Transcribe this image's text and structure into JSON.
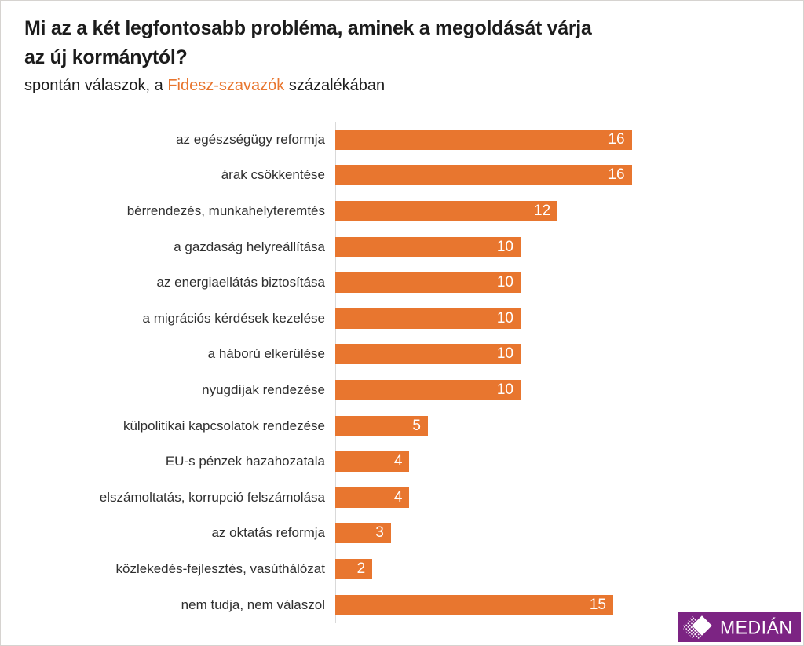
{
  "header": {
    "title_line1": "Mi az a két legfontosabb probléma, aminek a megoldását várja",
    "title_line2": "az új kormánytól?",
    "subtitle_prefix": "spontán válaszok, a ",
    "subtitle_highlight": "Fidesz-szavazók",
    "subtitle_suffix": " százalékában"
  },
  "chart_data": {
    "type": "bar",
    "orientation": "horizontal",
    "title": "Mi az a két legfontosabb probléma, aminek a megoldását várja az új kormánytól?",
    "subtitle": "spontán válaszok, a Fidesz-szavazók százalékában",
    "categories": [
      "az egészségügy reformja",
      "árak csökkentése",
      "bérrendezés, munkahelyteremtés",
      "a gazdaság helyreállítása",
      "az energiaellátás biztosítása",
      "a migrációs kérdések kezelése",
      "a háború elkerülése",
      "nyugdíjak rendezése",
      "külpolitikai kapcsolatok rendezése",
      "EU-s pénzek hazahozatala",
      "elszámoltatás, korrupció felszámolása",
      "az oktatás reformja",
      "közlekedés-fejlesztés, vasúthálózat",
      "nem tudja, nem válaszol"
    ],
    "values": [
      16,
      16,
      12,
      10,
      10,
      10,
      10,
      10,
      5,
      4,
      4,
      3,
      2,
      15
    ],
    "xlim": [
      0,
      25
    ],
    "grid": false,
    "legend": false,
    "unit": "percent",
    "bar_color": "#E8762F",
    "value_label_position": "inside-end",
    "value_label_color": "#FFFFFF",
    "axis_line_color": "#D9D9D9",
    "highlight_color": "#E8762F"
  },
  "logo": {
    "text": "MEDIÁN",
    "background": "#7C2483",
    "icon": "overlapping-diamonds"
  }
}
